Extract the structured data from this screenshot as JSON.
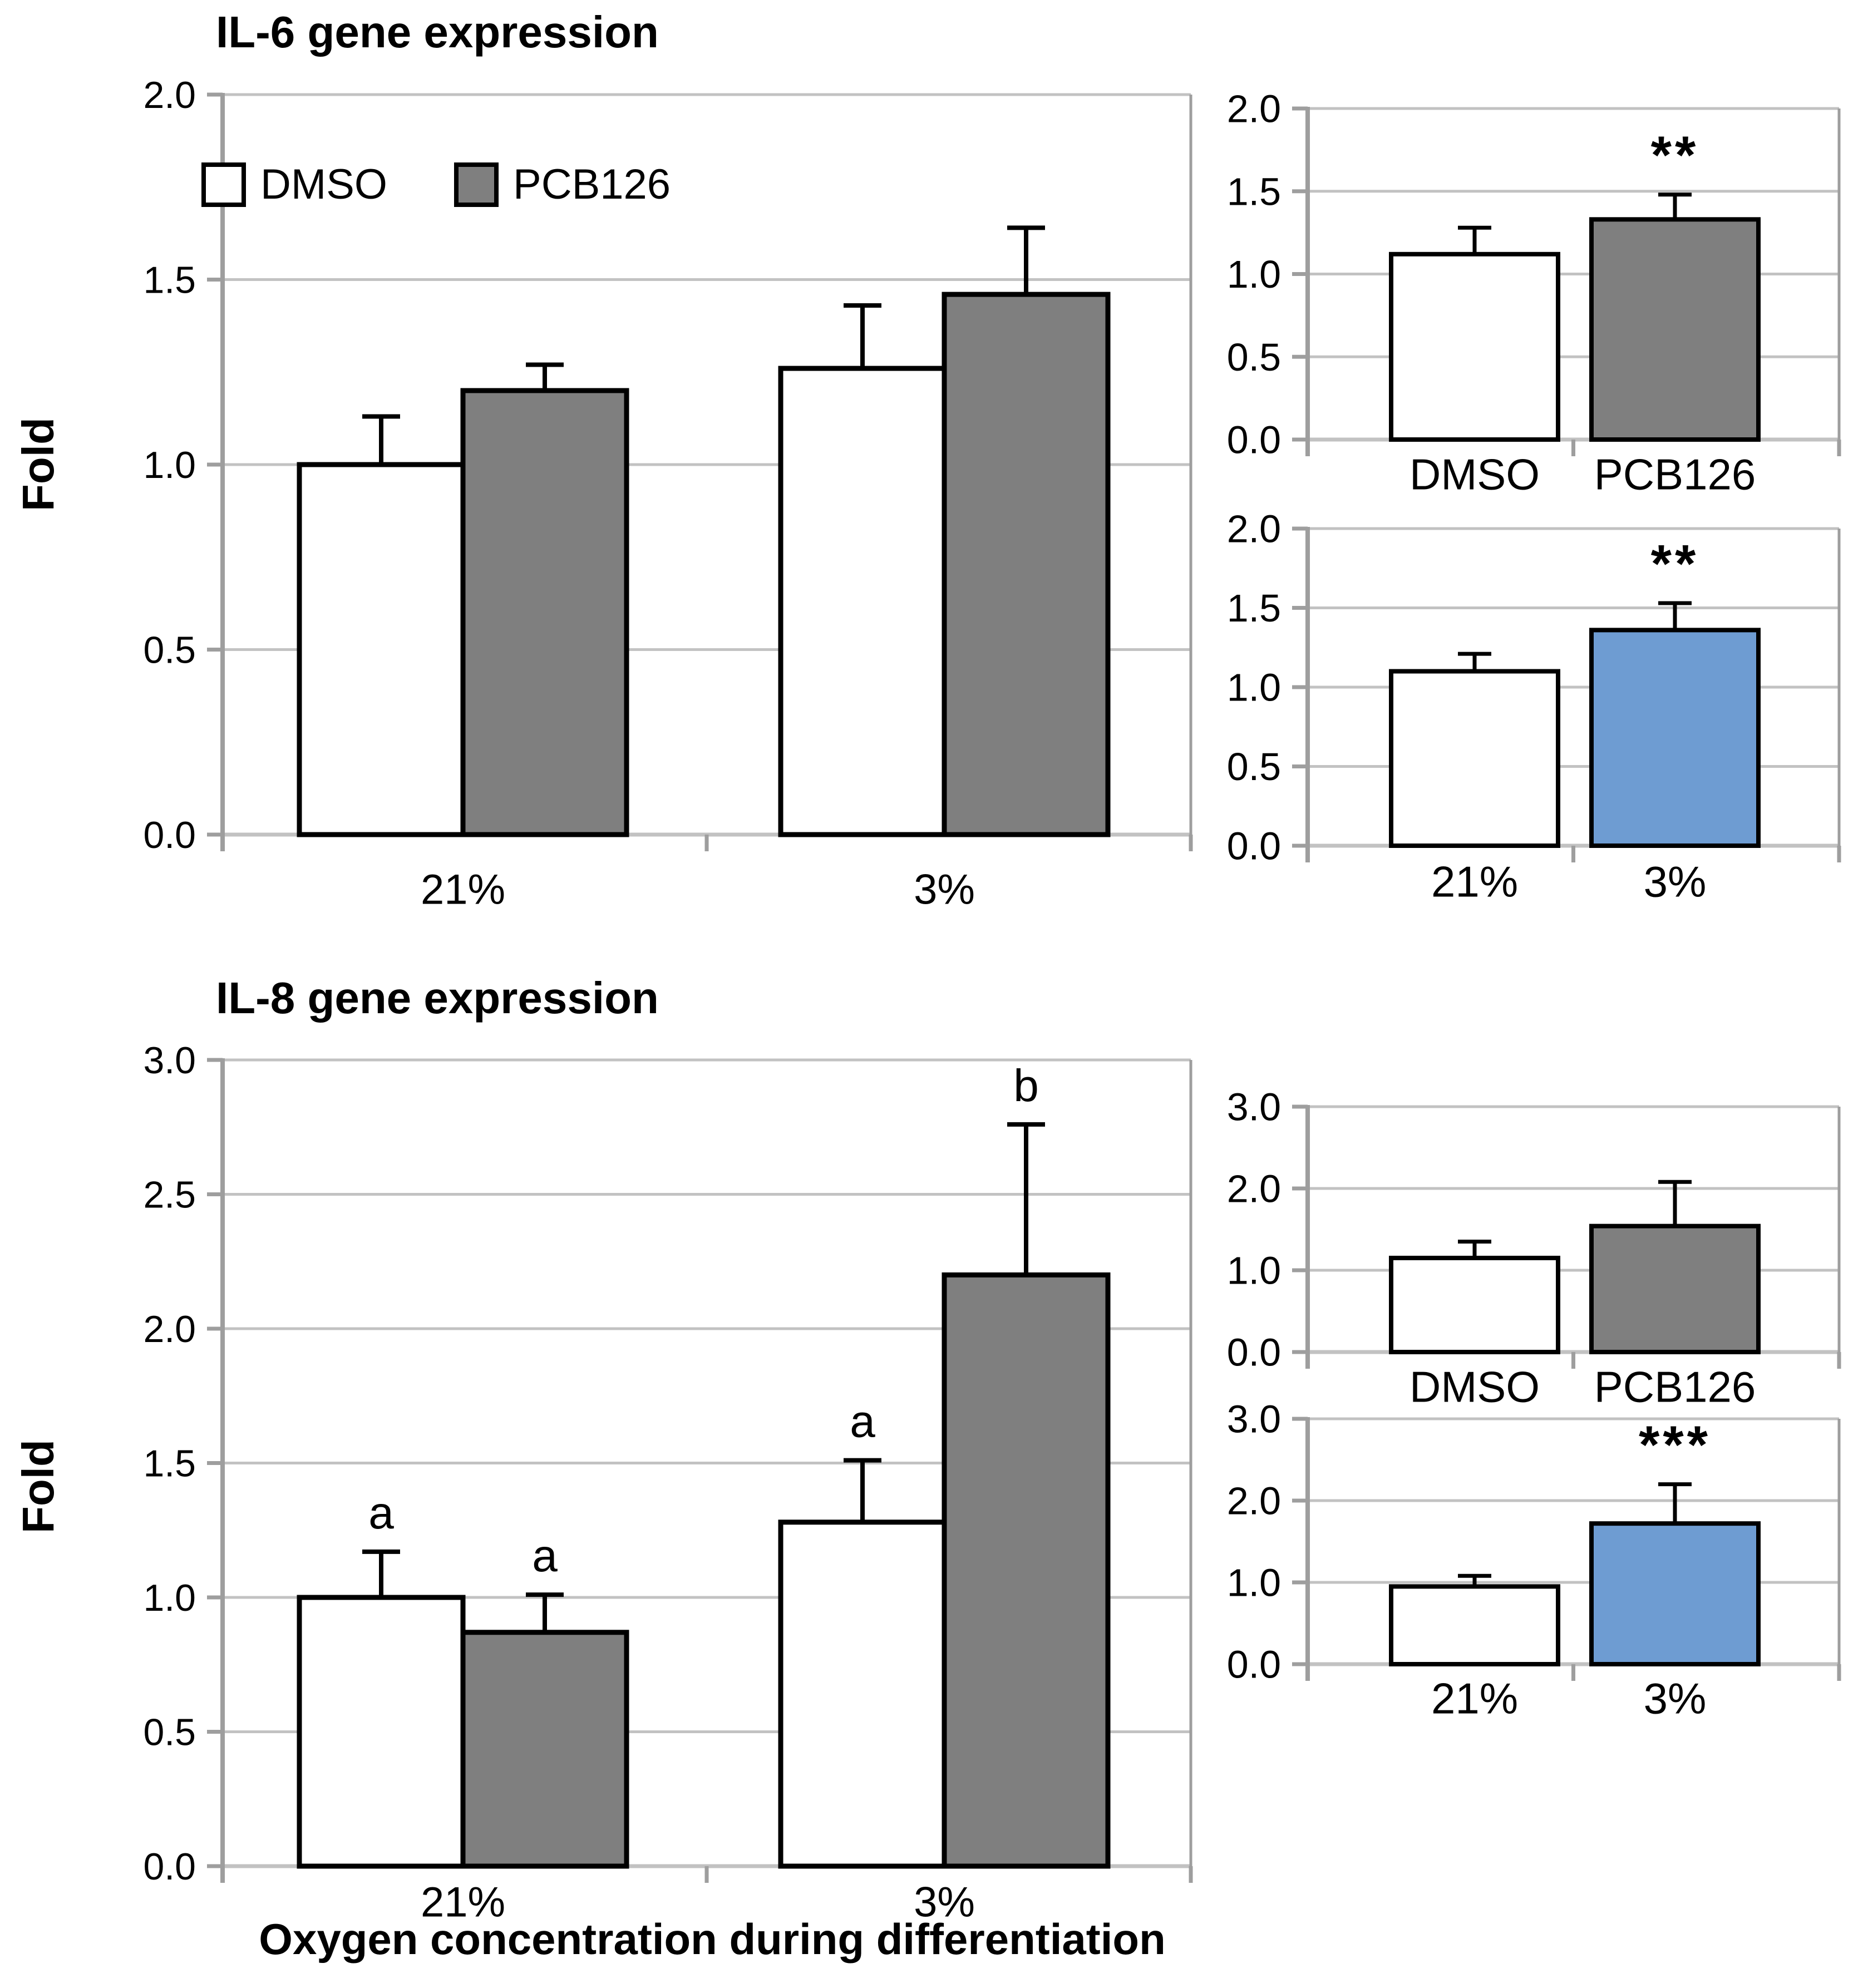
{
  "figure": {
    "titles": {
      "il6": "IL-6 gene expression",
      "il8": "IL-8 gene expression"
    },
    "y_axis_label": "Fold",
    "x_axis_label": "Oxygen concentration during differentiation"
  },
  "legend": {
    "items": [
      {
        "label": "DMSO",
        "color": "#FFFFFF"
      },
      {
        "label": "PCB126",
        "color": "#7F7F7F"
      }
    ]
  },
  "colors": {
    "dmso_bar": "#FFFFFF",
    "pcb126_bar": "#7F7F7F",
    "hypoxia_blue_bar": "#6E9CD2",
    "bar_border": "#000000",
    "gridline": "#C2C2C2",
    "axis": "#9E9E9E"
  },
  "chart_data": [
    {
      "id": "il6-interaction",
      "type": "bar",
      "title": "IL-6 gene expression",
      "ylabel": "Fold",
      "ylim": [
        0,
        2
      ],
      "yticks": [
        0,
        0.5,
        1,
        1.5,
        2
      ],
      "grid": true,
      "legend_position": "top-left-inside",
      "categories": [
        "21%",
        "3%"
      ],
      "series": [
        {
          "name": "DMSO",
          "color": "#FFFFFF",
          "values": [
            1.0,
            1.26
          ],
          "errors": [
            0.13,
            0.17
          ],
          "letters": [
            "",
            ""
          ]
        },
        {
          "name": "PCB126",
          "color": "#7F7F7F",
          "values": [
            1.2,
            1.46
          ],
          "errors": [
            0.07,
            0.18
          ],
          "letters": [
            "",
            ""
          ]
        }
      ]
    },
    {
      "id": "il6-treatment",
      "type": "bar",
      "ylim": [
        0,
        2
      ],
      "yticks": [
        0,
        0.5,
        1,
        1.5,
        2
      ],
      "grid": true,
      "categories": [
        "DMSO",
        "PCB126"
      ],
      "values": [
        1.12,
        1.33
      ],
      "errors": [
        0.16,
        0.15
      ],
      "sig": [
        "",
        "**"
      ],
      "bar_colors": [
        "#FFFFFF",
        "#7F7F7F"
      ]
    },
    {
      "id": "il6-oxygen",
      "type": "bar",
      "ylim": [
        0,
        2
      ],
      "yticks": [
        0,
        0.5,
        1,
        1.5,
        2
      ],
      "grid": true,
      "categories": [
        "21%",
        "3%"
      ],
      "values": [
        1.1,
        1.36
      ],
      "errors": [
        0.11,
        0.17
      ],
      "sig": [
        "",
        "**"
      ],
      "bar_colors": [
        "#FFFFFF",
        "#6E9CD2"
      ]
    },
    {
      "id": "il8-interaction",
      "type": "bar",
      "title": "IL-8 gene expression",
      "ylabel": "Fold",
      "xlabel": "Oxygen concentration during differentiation",
      "ylim": [
        0,
        3
      ],
      "yticks": [
        0,
        0.5,
        1,
        1.5,
        2,
        2.5,
        3
      ],
      "grid": true,
      "categories": [
        "21%",
        "3%"
      ],
      "series": [
        {
          "name": "DMSO",
          "color": "#FFFFFF",
          "values": [
            1.0,
            1.28
          ],
          "errors": [
            0.17,
            0.23
          ],
          "letters": [
            "a",
            "a"
          ]
        },
        {
          "name": "PCB126",
          "color": "#7F7F7F",
          "values": [
            0.87,
            2.2
          ],
          "errors": [
            0.14,
            0.56
          ],
          "letters": [
            "a",
            "b"
          ]
        }
      ]
    },
    {
      "id": "il8-treatment",
      "type": "bar",
      "ylim": [
        0,
        3
      ],
      "yticks": [
        0,
        1,
        2,
        3
      ],
      "grid": true,
      "categories": [
        "DMSO",
        "PCB126"
      ],
      "values": [
        1.15,
        1.54
      ],
      "errors": [
        0.2,
        0.54
      ],
      "sig": [
        "",
        ""
      ],
      "bar_colors": [
        "#FFFFFF",
        "#7F7F7F"
      ]
    },
    {
      "id": "il8-oxygen",
      "type": "bar",
      "ylim": [
        0,
        3
      ],
      "yticks": [
        0,
        1,
        2,
        3
      ],
      "grid": true,
      "categories": [
        "21%",
        "3%"
      ],
      "values": [
        0.95,
        1.72
      ],
      "errors": [
        0.13,
        0.48
      ],
      "sig": [
        "",
        "***"
      ],
      "bar_colors": [
        "#FFFFFF",
        "#6E9CD2"
      ]
    }
  ]
}
